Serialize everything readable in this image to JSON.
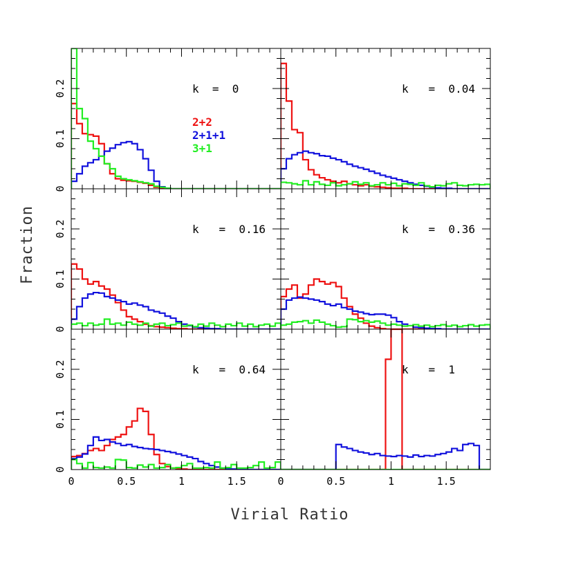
{
  "chart_data": {
    "type": "histogram",
    "layout": "3 rows x 2 columns, shared axes",
    "xlabel": "Virial Ratio",
    "ylabel": "Fraction",
    "xlim": [
      0,
      1.9
    ],
    "ylim": [
      0,
      0.28
    ],
    "x_ticks": [
      {
        "v": 0,
        "label": "0"
      },
      {
        "v": 0.5,
        "label": "0.5"
      },
      {
        "v": 1,
        "label": "1"
      },
      {
        "v": 1.5,
        "label": "1.5"
      }
    ],
    "y_ticks": [
      {
        "v": 0,
        "label": "0"
      },
      {
        "v": 0.1,
        "label": "0.1"
      },
      {
        "v": 0.2,
        "label": "0.2"
      }
    ],
    "bin_width": 0.05,
    "legend": {
      "placement": "inside top-left panel",
      "entries": [
        {
          "label": "2+2",
          "color": "#ee1111"
        },
        {
          "label": "2+1+1",
          "color": "#1111dd"
        },
        {
          "label": "3+1",
          "color": "#22ee22"
        }
      ]
    },
    "panels": [
      {
        "label": "k  =  0",
        "series": [
          {
            "name": "2+2",
            "color": "#ee1111",
            "values": [
              0.17,
              0.13,
              0.11,
              0.108,
              0.105,
              0.09,
              0.05,
              0.03,
              0.02,
              0.017,
              0.016,
              0.015,
              0.013,
              0.011,
              0.007,
              0.003,
              0.001,
              0,
              0,
              0,
              0,
              0,
              0,
              0,
              0,
              0,
              0,
              0,
              0,
              0,
              0,
              0,
              0,
              0,
              0,
              0,
              0,
              0
            ]
          },
          {
            "name": "2+1+1",
            "color": "#1111dd",
            "values": [
              0.015,
              0.03,
              0.045,
              0.052,
              0.058,
              0.065,
              0.075,
              0.081,
              0.088,
              0.092,
              0.094,
              0.09,
              0.078,
              0.06,
              0.037,
              0.015,
              0.004,
              0.001,
              0,
              0,
              0,
              0,
              0,
              0,
              0,
              0,
              0,
              0,
              0,
              0,
              0,
              0,
              0,
              0,
              0,
              0,
              0,
              0
            ]
          },
          {
            "name": "3+1",
            "color": "#22ee22",
            "values": [
              0.28,
              0.16,
              0.14,
              0.095,
              0.08,
              0.065,
              0.05,
              0.04,
              0.025,
              0.02,
              0.018,
              0.016,
              0.014,
              0.012,
              0.01,
              0.005,
              0.003,
              0.001,
              0,
              0,
              0,
              0,
              0,
              0,
              0,
              0,
              0,
              0,
              0,
              0,
              0,
              0,
              0,
              0,
              0,
              0,
              0,
              0
            ]
          }
        ]
      },
      {
        "label": "k   =  0.04",
        "series": [
          {
            "name": "2+2",
            "color": "#ee1111",
            "values": [
              0.25,
              0.175,
              0.118,
              0.112,
              0.058,
              0.038,
              0.028,
              0.022,
              0.018,
              0.015,
              0.012,
              0.015,
              0.01,
              0.008,
              0.006,
              0.008,
              0.005,
              0.004,
              0.003,
              0.002,
              0.001,
              0.001,
              0.001,
              0,
              0,
              0,
              0,
              0,
              0,
              0,
              0,
              0,
              0,
              0,
              0,
              0,
              0,
              0
            ]
          },
          {
            "name": "2+1+1",
            "color": "#1111dd",
            "values": [
              0.04,
              0.06,
              0.068,
              0.072,
              0.075,
              0.072,
              0.07,
              0.066,
              0.065,
              0.061,
              0.058,
              0.054,
              0.049,
              0.045,
              0.042,
              0.039,
              0.035,
              0.031,
              0.027,
              0.024,
              0.021,
              0.018,
              0.015,
              0.012,
              0.009,
              0.007,
              0.005,
              0.003,
              0.002,
              0.001,
              0.001,
              0,
              0,
              0,
              0,
              0,
              0,
              0
            ]
          },
          {
            "name": "3+1",
            "color": "#22ee22",
            "values": [
              0.013,
              0.012,
              0.01,
              0.008,
              0.016,
              0.008,
              0.014,
              0.009,
              0.007,
              0.012,
              0.006,
              0.008,
              0.01,
              0.014,
              0.009,
              0.012,
              0.006,
              0.008,
              0.012,
              0.008,
              0.011,
              0.006,
              0.01,
              0.009,
              0.007,
              0.012,
              0.006,
              0.004,
              0.007,
              0.006,
              0.01,
              0.012,
              0.007,
              0.006,
              0.008,
              0.009,
              0.008,
              0.009
            ]
          }
        ]
      },
      {
        "label": "k   =  0.16",
        "series": [
          {
            "name": "2+2",
            "color": "#ee1111",
            "values": [
              0.13,
              0.12,
              0.1,
              0.09,
              0.095,
              0.086,
              0.08,
              0.068,
              0.053,
              0.038,
              0.025,
              0.02,
              0.015,
              0.01,
              0.007,
              0.005,
              0.004,
              0.003,
              0.002,
              0.001,
              0.001,
              0,
              0,
              0,
              0,
              0,
              0,
              0,
              0,
              0,
              0,
              0,
              0,
              0,
              0,
              0,
              0,
              0
            ]
          },
          {
            "name": "2+1+1",
            "color": "#1111dd",
            "values": [
              0.02,
              0.045,
              0.062,
              0.07,
              0.073,
              0.072,
              0.065,
              0.062,
              0.058,
              0.055,
              0.05,
              0.052,
              0.048,
              0.045,
              0.038,
              0.035,
              0.032,
              0.026,
              0.022,
              0.015,
              0.01,
              0.007,
              0.004,
              0.003,
              0.002,
              0.001,
              0.001,
              0,
              0,
              0,
              0,
              0,
              0,
              0,
              0,
              0,
              0,
              0
            ]
          },
          {
            "name": "3+1",
            "color": "#22ee22",
            "values": [
              0.01,
              0.012,
              0.007,
              0.012,
              0.008,
              0.01,
              0.02,
              0.01,
              0.012,
              0.008,
              0.014,
              0.01,
              0.008,
              0.012,
              0.006,
              0.01,
              0.012,
              0.007,
              0.009,
              0.012,
              0.006,
              0.008,
              0.005,
              0.01,
              0.006,
              0.012,
              0.008,
              0.005,
              0.01,
              0.007,
              0.012,
              0.006,
              0.01,
              0.005,
              0.008,
              0.01,
              0.006,
              0.012
            ]
          }
        ]
      },
      {
        "label": "k   =  0.36",
        "series": [
          {
            "name": "2+2",
            "color": "#ee1111",
            "values": [
              0.065,
              0.08,
              0.088,
              0.062,
              0.07,
              0.088,
              0.1,
              0.095,
              0.09,
              0.093,
              0.085,
              0.062,
              0.045,
              0.03,
              0.022,
              0.012,
              0.006,
              0.003,
              0.001,
              0,
              0,
              0,
              0,
              0,
              0,
              0,
              0,
              0,
              0,
              0,
              0,
              0,
              0,
              0,
              0,
              0,
              0,
              0
            ]
          },
          {
            "name": "2+1+1",
            "color": "#1111dd",
            "values": [
              0.04,
              0.058,
              0.062,
              0.064,
              0.062,
              0.06,
              0.058,
              0.055,
              0.05,
              0.047,
              0.05,
              0.043,
              0.04,
              0.036,
              0.034,
              0.031,
              0.029,
              0.03,
              0.03,
              0.028,
              0.023,
              0.015,
              0.01,
              0.007,
              0.004,
              0.003,
              0.002,
              0.001,
              0.001,
              0,
              0,
              0,
              0,
              0,
              0,
              0,
              0,
              0
            ]
          },
          {
            "name": "3+1",
            "color": "#22ee22",
            "values": [
              0.008,
              0.01,
              0.014,
              0.015,
              0.017,
              0.012,
              0.018,
              0.014,
              0.01,
              0.007,
              0.004,
              0.005,
              0.02,
              0.019,
              0.015,
              0.017,
              0.014,
              0.016,
              0.012,
              0.008,
              0.01,
              0.008,
              0.006,
              0.007,
              0.009,
              0.006,
              0.008,
              0.005,
              0.007,
              0.009,
              0.006,
              0.008,
              0.005,
              0.007,
              0.009,
              0.006,
              0.008,
              0.009
            ]
          }
        ]
      },
      {
        "label": "k   =  0.64",
        "series": [
          {
            "name": "2+2",
            "color": "#ee1111",
            "values": [
              0.026,
              0.028,
              0.032,
              0.038,
              0.042,
              0.038,
              0.048,
              0.06,
              0.065,
              0.07,
              0.085,
              0.097,
              0.122,
              0.116,
              0.07,
              0.03,
              0.012,
              0.006,
              0.003,
              0.002,
              0.001,
              0,
              0,
              0,
              0,
              0,
              0,
              0,
              0,
              0,
              0,
              0,
              0,
              0,
              0,
              0,
              0,
              0
            ]
          },
          {
            "name": "2+1+1",
            "color": "#1111dd",
            "values": [
              0.022,
              0.025,
              0.031,
              0.048,
              0.065,
              0.058,
              0.06,
              0.055,
              0.052,
              0.048,
              0.05,
              0.046,
              0.044,
              0.042,
              0.041,
              0.04,
              0.038,
              0.036,
              0.034,
              0.031,
              0.028,
              0.025,
              0.022,
              0.016,
              0.012,
              0.008,
              0.005,
              0.003,
              0.002,
              0.001,
              0,
              0,
              0,
              0,
              0,
              0,
              0,
              0
            ]
          },
          {
            "name": "3+1",
            "color": "#22ee22",
            "values": [
              0.02,
              0.012,
              0.003,
              0.014,
              0.004,
              0.003,
              0.005,
              0.003,
              0.02,
              0.019,
              0.004,
              0.003,
              0.009,
              0.005,
              0.01,
              0.003,
              0.004,
              0.01,
              0.003,
              0.004,
              0.008,
              0.012,
              0.003,
              0.003,
              0.004,
              0.003,
              0.015,
              0.003,
              0.004,
              0.01,
              0.003,
              0.003,
              0.004,
              0.008,
              0.015,
              0.003,
              0.004,
              0.015
            ]
          }
        ]
      },
      {
        "label": "k   =  1",
        "series": [
          {
            "name": "2+2",
            "color": "#ee1111",
            "values": [
              0,
              0,
              0,
              0,
              0,
              0,
              0,
              0,
              0,
              0,
              0,
              0,
              0,
              0,
              0,
              0,
              0,
              0,
              0,
              0.22,
              0.29,
              0.29,
              0,
              0,
              0,
              0,
              0,
              0,
              0,
              0,
              0,
              0,
              0,
              0,
              0,
              0,
              0,
              0
            ]
          },
          {
            "name": "2+1+1",
            "color": "#1111dd",
            "values": [
              0,
              0,
              0,
              0,
              0,
              0,
              0,
              0,
              0,
              0,
              0.05,
              0.045,
              0.042,
              0.038,
              0.035,
              0.033,
              0.03,
              0.032,
              0.028,
              0.027,
              0.026,
              0.028,
              0.027,
              0.025,
              0.029,
              0.026,
              0.028,
              0.027,
              0.03,
              0.032,
              0.035,
              0.042,
              0.038,
              0.05,
              0.052,
              0.048,
              0,
              0
            ]
          },
          {
            "name": "3+1",
            "color": "#22ee22",
            "values": [
              0,
              0,
              0,
              0,
              0,
              0,
              0,
              0,
              0,
              0,
              0,
              0,
              0,
              0,
              0,
              0,
              0,
              0,
              0,
              0,
              0,
              0,
              0,
              0,
              0,
              0,
              0,
              0,
              0,
              0,
              0,
              0,
              0,
              0,
              0,
              0,
              0,
              0
            ]
          }
        ]
      }
    ]
  }
}
